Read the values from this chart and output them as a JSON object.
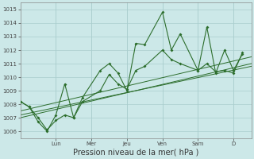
{
  "title": "",
  "xlabel": "Pression niveau de la mer( hPa )",
  "ylabel": "",
  "bg_color": "#cce8e8",
  "grid_color": "#aacece",
  "line_color": "#2d6e2d",
  "ylim": [
    1005.5,
    1015.5
  ],
  "yticks": [
    1006,
    1007,
    1008,
    1009,
    1010,
    1011,
    1012,
    1013,
    1014,
    1015
  ],
  "day_labels": [
    "Lun",
    "Mer",
    "Jeu",
    "Ven",
    "Sam",
    "D"
  ],
  "day_positions": [
    2.0,
    4.0,
    6.0,
    8.0,
    10.0,
    12.0
  ],
  "xlim": [
    0,
    13
  ],
  "series1_x": [
    0.0,
    0.5,
    1.0,
    1.5,
    2.0,
    2.5,
    3.0,
    3.5,
    4.5,
    5.0,
    5.5,
    6.0,
    6.5,
    7.0,
    8.0,
    8.5,
    9.0,
    10.0,
    10.5,
    11.0,
    11.5,
    12.0,
    12.5
  ],
  "series1_y": [
    1008.2,
    1007.8,
    1006.7,
    1006.0,
    1007.2,
    1009.5,
    1007.0,
    1008.5,
    1010.5,
    1011.0,
    1010.3,
    1009.0,
    1012.5,
    1012.4,
    1014.8,
    1012.0,
    1013.2,
    1010.5,
    1013.7,
    1010.3,
    1012.0,
    1010.5,
    1011.7
  ],
  "series2_x": [
    0.0,
    0.5,
    1.0,
    1.5,
    2.0,
    2.5,
    3.0,
    3.5,
    4.5,
    5.0,
    5.5,
    6.0,
    6.5,
    7.0,
    8.0,
    8.5,
    9.0,
    10.0,
    10.5,
    11.0,
    11.5,
    12.0,
    12.5
  ],
  "series2_y": [
    1008.2,
    1007.8,
    1007.0,
    1006.1,
    1006.8,
    1007.2,
    1007.0,
    1008.2,
    1009.0,
    1010.2,
    1009.5,
    1009.1,
    1010.5,
    1010.8,
    1012.0,
    1011.3,
    1011.0,
    1010.5,
    1011.0,
    1010.4,
    1010.5,
    1010.3,
    1011.8
  ],
  "trend_starts": [
    1007.5,
    1007.0,
    1007.2
  ],
  "trend_ends": [
    1011.5,
    1011.0,
    1010.8
  ],
  "vline_color": "#888888",
  "xlabel_fontsize": 7,
  "tick_fontsize": 5,
  "figsize": [
    3.2,
    2.0
  ],
  "dpi": 100
}
